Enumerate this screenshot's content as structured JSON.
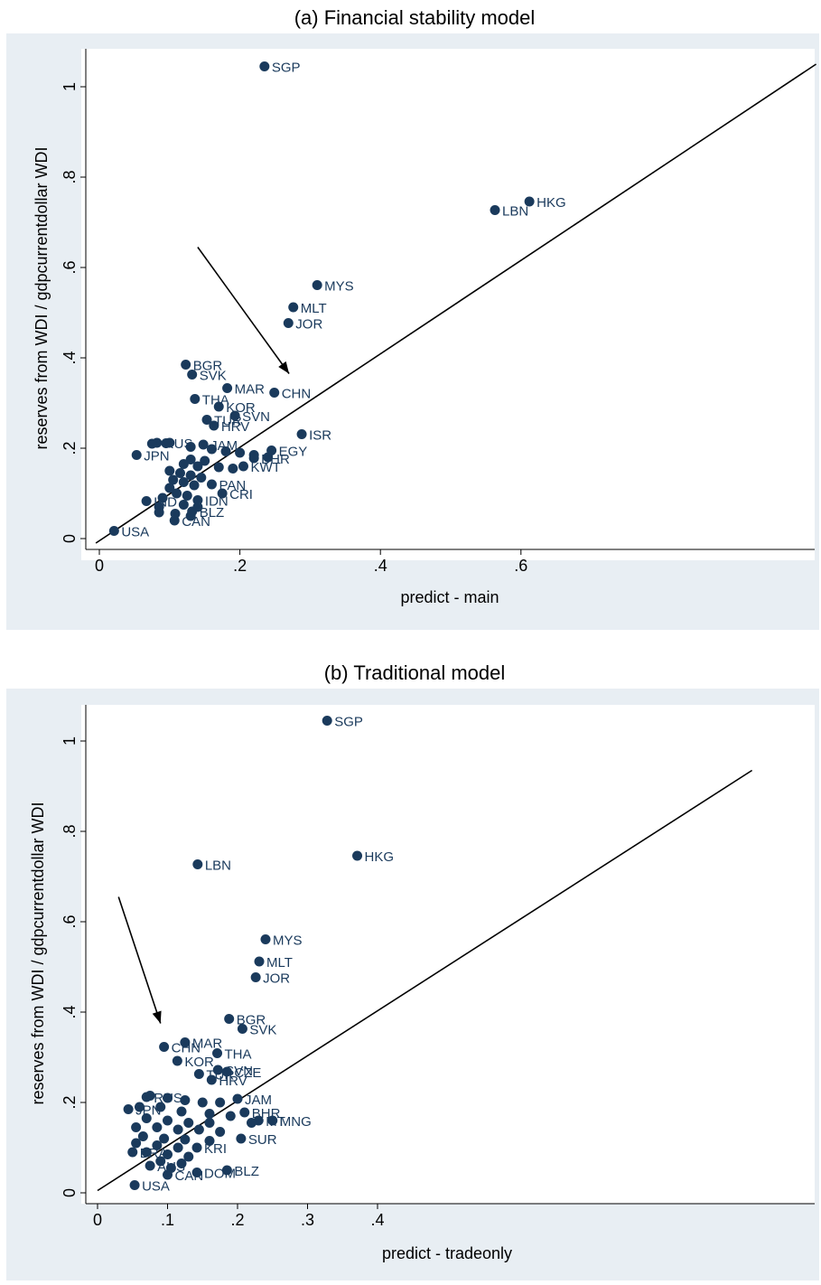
{
  "chart_data": [
    {
      "type": "scatter",
      "title": "(a) Financial stability model",
      "xlabel": "predict - main",
      "ylabel": "reserves from WDI / gdpcurrentdollar WDI",
      "xlim": [
        -0.015,
        1.02
      ],
      "ylim": [
        -0.015,
        1.07
      ],
      "xticks": [
        0,
        0.2,
        0.4,
        0.6
      ],
      "xtick_labels": [
        "0",
        ".2",
        ".4",
        ".6"
      ],
      "yticks": [
        0,
        0.2,
        0.4,
        0.6,
        0.8,
        1
      ],
      "ytick_labels": [
        "0",
        ".2",
        ".4",
        ".6",
        ".8",
        "1"
      ],
      "marker_color": "#1a3a5c",
      "fit_line": {
        "x": [
          -0.005,
          1.02
        ],
        "y": [
          -0.01,
          1.05
        ]
      },
      "annotation_arrow": {
        "from": [
          0.14,
          0.645
        ],
        "to": [
          0.27,
          0.365
        ]
      },
      "points": [
        {
          "x": 0.235,
          "y": 1.045,
          "label": "SGP"
        },
        {
          "x": 0.612,
          "y": 0.746,
          "label": "HKG"
        },
        {
          "x": 0.563,
          "y": 0.727,
          "label": "LBN"
        },
        {
          "x": 0.31,
          "y": 0.561,
          "label": "MYS"
        },
        {
          "x": 0.276,
          "y": 0.512,
          "label": "MLT"
        },
        {
          "x": 0.269,
          "y": 0.477,
          "label": "JOR"
        },
        {
          "x": 0.123,
          "y": 0.385,
          "label": "BGR"
        },
        {
          "x": 0.132,
          "y": 0.363,
          "label": "SVK"
        },
        {
          "x": 0.182,
          "y": 0.333,
          "label": "MAR"
        },
        {
          "x": 0.249,
          "y": 0.323,
          "label": "CHN"
        },
        {
          "x": 0.136,
          "y": 0.309,
          "label": "THA"
        },
        {
          "x": 0.17,
          "y": 0.292,
          "label": "KOR"
        },
        {
          "x": 0.193,
          "y": 0.272,
          "label": "SVN"
        },
        {
          "x": 0.153,
          "y": 0.263,
          "label": "TUR"
        },
        {
          "x": 0.163,
          "y": 0.25,
          "label": "HRV"
        },
        {
          "x": 0.288,
          "y": 0.231,
          "label": "ISR"
        },
        {
          "x": 0.245,
          "y": 0.195,
          "label": "EGY"
        },
        {
          "x": 0.082,
          "y": 0.212,
          "label": "RUS"
        },
        {
          "x": 0.148,
          "y": 0.208,
          "label": "JAM"
        },
        {
          "x": 0.053,
          "y": 0.185,
          "label": "JPN"
        },
        {
          "x": 0.22,
          "y": 0.178,
          "label": "BHR"
        },
        {
          "x": 0.205,
          "y": 0.16,
          "label": "KWT"
        },
        {
          "x": 0.16,
          "y": 0.12,
          "label": "PAN"
        },
        {
          "x": 0.175,
          "y": 0.1,
          "label": "CRI"
        },
        {
          "x": 0.14,
          "y": 0.085,
          "label": "IDN"
        },
        {
          "x": 0.067,
          "y": 0.083,
          "label": "IND"
        },
        {
          "x": 0.132,
          "y": 0.06,
          "label": "BLZ"
        },
        {
          "x": 0.107,
          "y": 0.04,
          "label": "CAN"
        },
        {
          "x": 0.021,
          "y": 0.017,
          "label": "USA"
        },
        {
          "x": 0.095,
          "y": 0.211,
          "label": ""
        },
        {
          "x": 0.1,
          "y": 0.212,
          "label": ""
        },
        {
          "x": 0.075,
          "y": 0.21,
          "label": ""
        },
        {
          "x": 0.13,
          "y": 0.203,
          "label": ""
        },
        {
          "x": 0.16,
          "y": 0.198,
          "label": ""
        },
        {
          "x": 0.18,
          "y": 0.193,
          "label": ""
        },
        {
          "x": 0.2,
          "y": 0.19,
          "label": ""
        },
        {
          "x": 0.22,
          "y": 0.185,
          "label": ""
        },
        {
          "x": 0.24,
          "y": 0.18,
          "label": ""
        },
        {
          "x": 0.13,
          "y": 0.175,
          "label": ""
        },
        {
          "x": 0.15,
          "y": 0.172,
          "label": ""
        },
        {
          "x": 0.12,
          "y": 0.165,
          "label": ""
        },
        {
          "x": 0.14,
          "y": 0.16,
          "label": ""
        },
        {
          "x": 0.17,
          "y": 0.158,
          "label": ""
        },
        {
          "x": 0.19,
          "y": 0.155,
          "label": ""
        },
        {
          "x": 0.1,
          "y": 0.15,
          "label": ""
        },
        {
          "x": 0.115,
          "y": 0.145,
          "label": ""
        },
        {
          "x": 0.13,
          "y": 0.14,
          "label": ""
        },
        {
          "x": 0.145,
          "y": 0.135,
          "label": ""
        },
        {
          "x": 0.105,
          "y": 0.13,
          "label": ""
        },
        {
          "x": 0.12,
          "y": 0.125,
          "label": ""
        },
        {
          "x": 0.135,
          "y": 0.118,
          "label": ""
        },
        {
          "x": 0.1,
          "y": 0.112,
          "label": ""
        },
        {
          "x": 0.11,
          "y": 0.1,
          "label": ""
        },
        {
          "x": 0.125,
          "y": 0.095,
          "label": ""
        },
        {
          "x": 0.09,
          "y": 0.09,
          "label": ""
        },
        {
          "x": 0.12,
          "y": 0.075,
          "label": ""
        },
        {
          "x": 0.14,
          "y": 0.07,
          "label": ""
        },
        {
          "x": 0.085,
          "y": 0.07,
          "label": ""
        },
        {
          "x": 0.085,
          "y": 0.058,
          "label": ""
        },
        {
          "x": 0.108,
          "y": 0.055,
          "label": ""
        },
        {
          "x": 0.13,
          "y": 0.05,
          "label": ""
        }
      ]
    },
    {
      "type": "scatter",
      "title": "(b) Traditional model",
      "xlabel": "predict - tradeonly",
      "ylabel": "reserves from WDI / gdpcurrentdollar WDI",
      "xlim": [
        -0.015,
        1.015
      ],
      "ylim": [
        -0.015,
        1.07
      ],
      "xticks": [
        0,
        0.1,
        0.2,
        0.3,
        0.4
      ],
      "xtick_labels": [
        "0",
        ".1",
        ".2",
        ".3",
        ".4"
      ],
      "yticks": [
        0,
        0.2,
        0.4,
        0.6,
        0.8,
        1
      ],
      "ytick_labels": [
        "0",
        ".2",
        ".4",
        ".6",
        ".8",
        "1"
      ],
      "marker_color": "#1a3a5c",
      "fit_line": {
        "x": [
          0,
          0.935
        ],
        "y": [
          0.005,
          0.935
        ]
      },
      "annotation_arrow": {
        "from": [
          0.03,
          0.655
        ],
        "to": [
          0.09,
          0.375
        ]
      },
      "points": [
        {
          "x": 0.328,
          "y": 1.045,
          "label": "SGP"
        },
        {
          "x": 0.371,
          "y": 0.746,
          "label": "HKG"
        },
        {
          "x": 0.143,
          "y": 0.727,
          "label": "LBN"
        },
        {
          "x": 0.24,
          "y": 0.561,
          "label": "MYS"
        },
        {
          "x": 0.231,
          "y": 0.512,
          "label": "MLT"
        },
        {
          "x": 0.226,
          "y": 0.477,
          "label": "JOR"
        },
        {
          "x": 0.188,
          "y": 0.385,
          "label": "BGR"
        },
        {
          "x": 0.207,
          "y": 0.363,
          "label": "SVK"
        },
        {
          "x": 0.125,
          "y": 0.333,
          "label": "MAR"
        },
        {
          "x": 0.095,
          "y": 0.323,
          "label": "CHN"
        },
        {
          "x": 0.171,
          "y": 0.309,
          "label": "THA"
        },
        {
          "x": 0.114,
          "y": 0.292,
          "label": "KOR"
        },
        {
          "x": 0.172,
          "y": 0.272,
          "label": "SVN"
        },
        {
          "x": 0.145,
          "y": 0.263,
          "label": "TUR"
        },
        {
          "x": 0.163,
          "y": 0.25,
          "label": "HRV"
        },
        {
          "x": 0.185,
          "y": 0.268,
          "label": "CZE"
        },
        {
          "x": 0.07,
          "y": 0.212,
          "label": "RUS"
        },
        {
          "x": 0.2,
          "y": 0.208,
          "label": "JAM"
        },
        {
          "x": 0.044,
          "y": 0.185,
          "label": "JPN"
        },
        {
          "x": 0.21,
          "y": 0.178,
          "label": "BHR"
        },
        {
          "x": 0.25,
          "y": 0.16,
          "label": "MNG"
        },
        {
          "x": 0.23,
          "y": 0.16,
          "label": "MT"
        },
        {
          "x": 0.205,
          "y": 0.12,
          "label": "SUR"
        },
        {
          "x": 0.142,
          "y": 0.1,
          "label": "KRI"
        },
        {
          "x": 0.05,
          "y": 0.09,
          "label": "BRA"
        },
        {
          "x": 0.075,
          "y": 0.06,
          "label": "AUS"
        },
        {
          "x": 0.185,
          "y": 0.05,
          "label": "BLZ"
        },
        {
          "x": 0.142,
          "y": 0.045,
          "label": "DOM"
        },
        {
          "x": 0.1,
          "y": 0.04,
          "label": "CAN"
        },
        {
          "x": 0.053,
          "y": 0.017,
          "label": "USA"
        },
        {
          "x": 0.075,
          "y": 0.215,
          "label": ""
        },
        {
          "x": 0.1,
          "y": 0.21,
          "label": ""
        },
        {
          "x": 0.125,
          "y": 0.205,
          "label": ""
        },
        {
          "x": 0.15,
          "y": 0.2,
          "label": ""
        },
        {
          "x": 0.175,
          "y": 0.2,
          "label": ""
        },
        {
          "x": 0.06,
          "y": 0.19,
          "label": ""
        },
        {
          "x": 0.09,
          "y": 0.19,
          "label": ""
        },
        {
          "x": 0.12,
          "y": 0.18,
          "label": ""
        },
        {
          "x": 0.16,
          "y": 0.175,
          "label": ""
        },
        {
          "x": 0.19,
          "y": 0.17,
          "label": ""
        },
        {
          "x": 0.07,
          "y": 0.165,
          "label": ""
        },
        {
          "x": 0.1,
          "y": 0.16,
          "label": ""
        },
        {
          "x": 0.13,
          "y": 0.155,
          "label": ""
        },
        {
          "x": 0.16,
          "y": 0.155,
          "label": ""
        },
        {
          "x": 0.22,
          "y": 0.155,
          "label": ""
        },
        {
          "x": 0.055,
          "y": 0.145,
          "label": ""
        },
        {
          "x": 0.085,
          "y": 0.145,
          "label": ""
        },
        {
          "x": 0.115,
          "y": 0.14,
          "label": ""
        },
        {
          "x": 0.145,
          "y": 0.14,
          "label": ""
        },
        {
          "x": 0.175,
          "y": 0.135,
          "label": ""
        },
        {
          "x": 0.065,
          "y": 0.125,
          "label": ""
        },
        {
          "x": 0.095,
          "y": 0.12,
          "label": ""
        },
        {
          "x": 0.125,
          "y": 0.118,
          "label": ""
        },
        {
          "x": 0.16,
          "y": 0.115,
          "label": ""
        },
        {
          "x": 0.055,
          "y": 0.11,
          "label": ""
        },
        {
          "x": 0.085,
          "y": 0.105,
          "label": ""
        },
        {
          "x": 0.115,
          "y": 0.1,
          "label": ""
        },
        {
          "x": 0.07,
          "y": 0.09,
          "label": ""
        },
        {
          "x": 0.1,
          "y": 0.085,
          "label": ""
        },
        {
          "x": 0.13,
          "y": 0.08,
          "label": ""
        },
        {
          "x": 0.09,
          "y": 0.07,
          "label": ""
        },
        {
          "x": 0.12,
          "y": 0.065,
          "label": ""
        },
        {
          "x": 0.105,
          "y": 0.055,
          "label": ""
        }
      ]
    }
  ]
}
